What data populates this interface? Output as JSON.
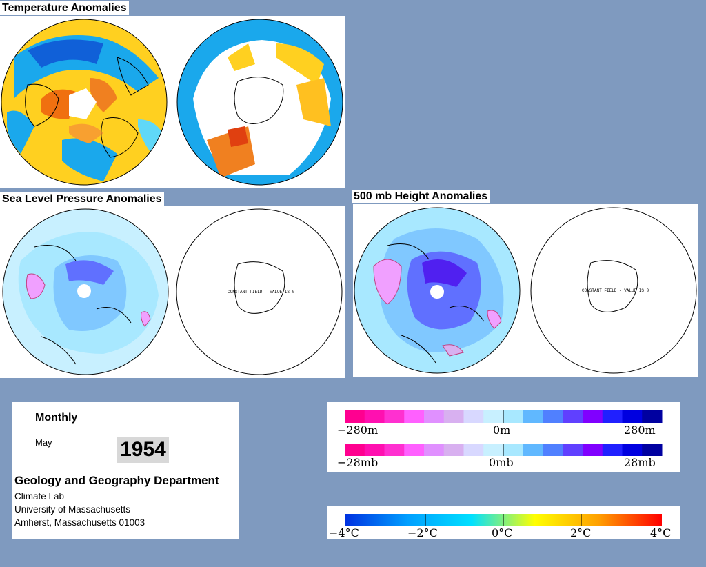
{
  "titles": {
    "temperature": "Temperature Anomalies",
    "slp": "Sea Level Pressure Anomalies",
    "height500": "500 mb Height Anomalies"
  },
  "maps": {
    "constant_field_label": "CONSTANT FIELD - VALUE IS 0"
  },
  "info": {
    "data_type": "Monthly",
    "month": "May",
    "year": "1954",
    "department": "Geology and Geography Department",
    "lines": [
      "Climate Lab",
      "University of Massachusetts",
      "Amherst, Massachusetts 01003"
    ]
  },
  "legends": {
    "height": {
      "labels": [
        "−280m",
        "0m",
        "280m"
      ],
      "colors": [
        "#ff0090",
        "#ff10b0",
        "#ff30d0",
        "#ff60ff",
        "#e090ff",
        "#d8b0f0",
        "#d8d8ff",
        "#c8f0ff",
        "#a8e8ff",
        "#60b8ff",
        "#5080ff",
        "#6040ff",
        "#8000ff",
        "#2020ff",
        "#0000e0",
        "#0000a0"
      ]
    },
    "pressure": {
      "labels": [
        "−28mb",
        "0mb",
        "28mb"
      ],
      "colors": [
        "#ff0090",
        "#ff10b0",
        "#ff30d0",
        "#ff60ff",
        "#e090ff",
        "#d8b0f0",
        "#d8d8ff",
        "#c8f0ff",
        "#a8e8ff",
        "#60b8ff",
        "#5080ff",
        "#6040ff",
        "#8000ff",
        "#2020ff",
        "#0000e0",
        "#0000a0"
      ]
    },
    "temperature": {
      "labels": [
        "−4°C",
        "−2°C",
        "0°C",
        "2°C",
        "4°C"
      ],
      "gradient": [
        "#0030e0",
        "#00a0ff",
        "#00e0ff",
        "#ffff00",
        "#ffa000",
        "#ff0000"
      ]
    }
  },
  "colors": {
    "background": "#7f9abf",
    "ocean_cool": "#c8f0ff",
    "ocean_warm": "#ffd020"
  }
}
